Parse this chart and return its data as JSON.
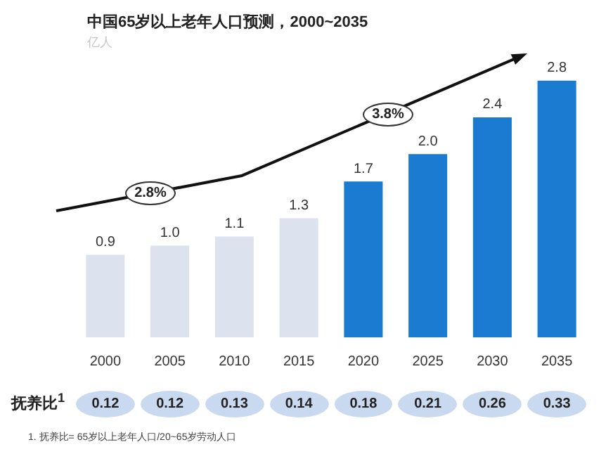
{
  "chart_data": [
    {
      "type": "bar",
      "title": "中国65岁以上老年人口预测，2000~2035",
      "subtitle": "亿人",
      "categories": [
        "2000",
        "2005",
        "2010",
        "2015",
        "2020",
        "2025",
        "2030",
        "2035"
      ],
      "values": [
        0.9,
        1.0,
        1.1,
        1.3,
        1.7,
        2.0,
        2.4,
        2.8
      ],
      "colors": [
        "#dde3ee",
        "#dde3ee",
        "#dde3ee",
        "#dde3ee",
        "#1a7bd1",
        "#1a7bd1",
        "#1a7bd1",
        "#1a7bd1"
      ],
      "value_labels": [
        "0.9",
        "1.0",
        "1.1",
        "1.3",
        "1.7",
        "2.0",
        "2.4",
        "2.8"
      ],
      "annotations": [
        "2.8%",
        "3.8%"
      ],
      "grid": false,
      "legend": false,
      "tick_labels": "x"
    },
    {
      "type": "other",
      "title": "抚养比$^{1}$",
      "values": [
        0.12,
        0.12,
        0.13,
        0.14,
        0.18,
        0.21,
        0.26,
        0.33
      ],
      "color": "#c9d9ef",
      "data_labels": true,
      "annotations": [
        "1. 抚养比= 65岁以上老年人口/20~65岁劳动人口"
      ]
    }
  ]
}
